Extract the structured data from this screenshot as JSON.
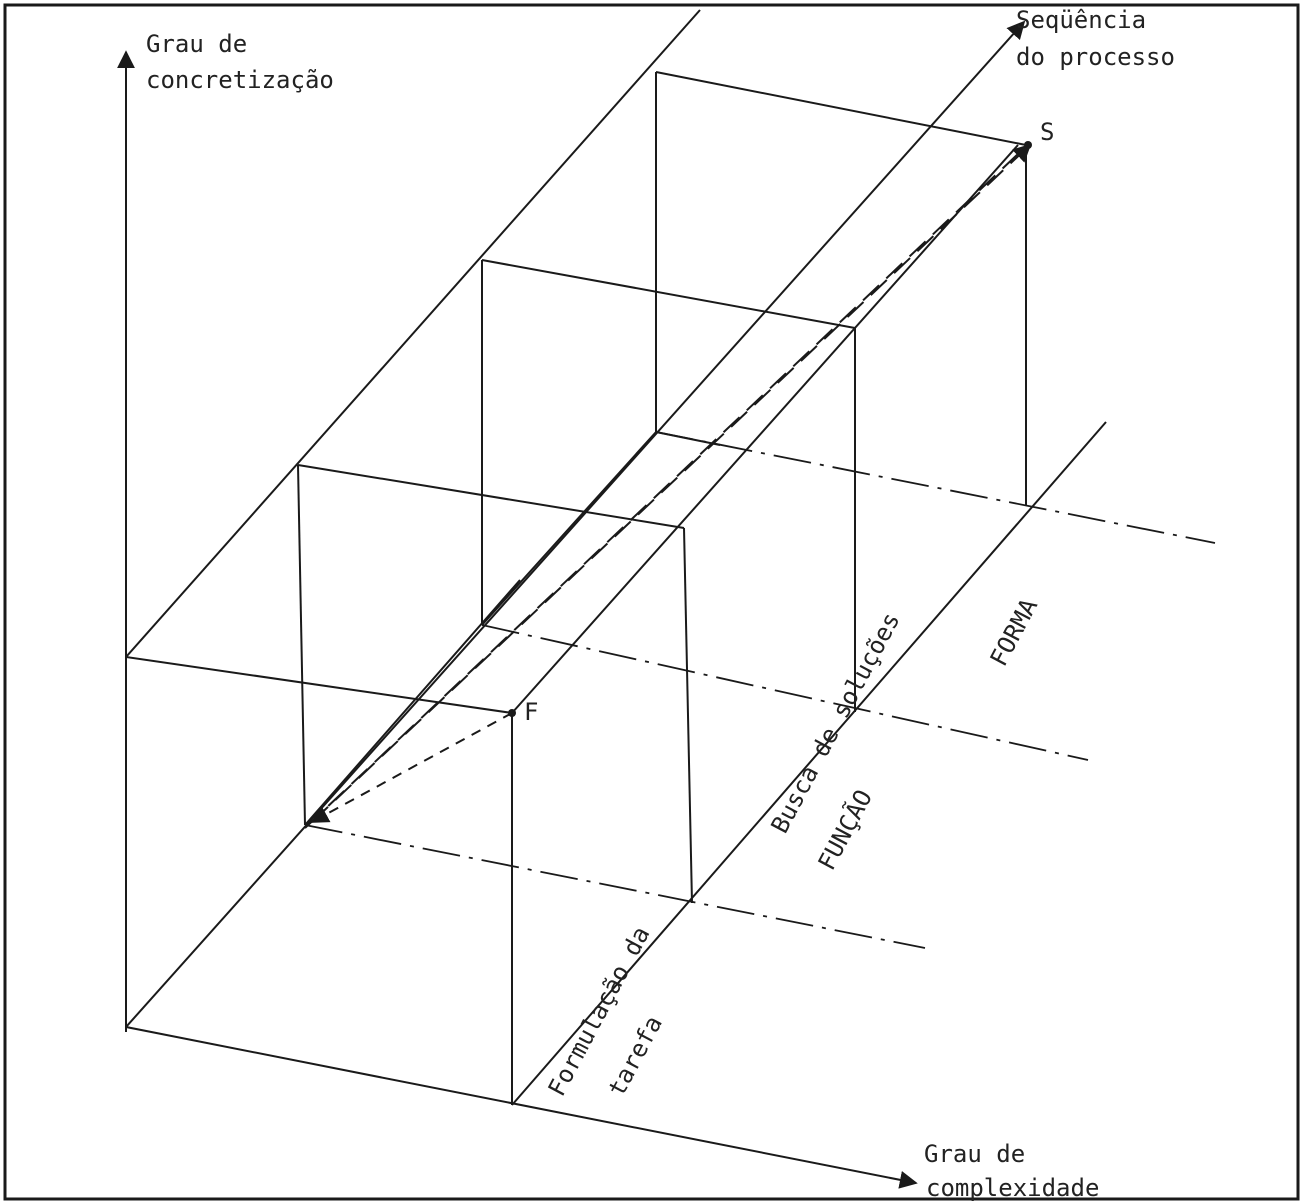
{
  "axes": {
    "vertical": {
      "line1": "Grau de",
      "line2": "concretização"
    },
    "horizontal": {
      "line1": "Grau de",
      "line2": "complexidade"
    },
    "depth": {
      "line1": "Seqüência",
      "line2": "do processo"
    }
  },
  "points": {
    "start": "F",
    "end": "S"
  },
  "phase_labels": {
    "phase1_line1": "Formulação da",
    "phase1_line2": "tarefa",
    "phase2": "Busca de soluções",
    "level_function": "FUNÇÃO",
    "level_form": "FORMA"
  },
  "colors": {
    "ink": "#1a1a1a",
    "background": "#ffffff"
  }
}
